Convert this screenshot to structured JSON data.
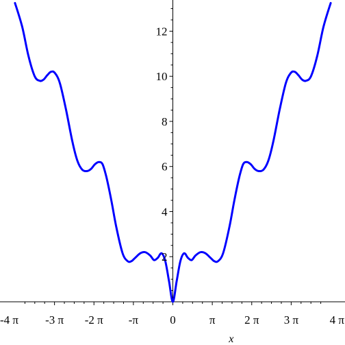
{
  "chart_data": {
    "type": "line",
    "title": "",
    "xlabel": "x",
    "ylabel": "",
    "xlim": [
      -12.566,
      12.566
    ],
    "ylim": [
      0,
      13.2
    ],
    "grid": false,
    "legend": "none",
    "line_color": "#0000ff",
    "x_ticks": [
      {
        "value": -12.566,
        "label": "-4 π"
      },
      {
        "value": -9.425,
        "label": "-3 π"
      },
      {
        "value": -6.283,
        "label": "-2 π"
      },
      {
        "value": -3.142,
        "label": "-π"
      },
      {
        "value": 0,
        "label": "0"
      },
      {
        "value": 3.142,
        "label": "π"
      },
      {
        "value": 6.283,
        "label": "2 π"
      },
      {
        "value": 9.425,
        "label": "3 π"
      },
      {
        "value": 12.566,
        "label": "4 π"
      }
    ],
    "y_ticks": [
      {
        "value": 2,
        "label": "2"
      },
      {
        "value": 4,
        "label": "4"
      },
      {
        "value": 6,
        "label": "6"
      },
      {
        "value": 8,
        "label": "8"
      },
      {
        "value": 10,
        "label": "10"
      },
      {
        "value": 12,
        "label": "12"
      }
    ],
    "series": [
      {
        "x": [
          -12.57,
          -12.0,
          -11.5,
          -11.0,
          -10.6,
          -10.3,
          -10.0,
          -9.7,
          -9.4,
          -9.0,
          -8.5,
          -8.0,
          -7.6,
          -7.2,
          -6.8,
          -6.5,
          -6.2,
          -5.9,
          -5.6,
          -5.3,
          -4.9,
          -4.5,
          -4.0,
          -3.6,
          -3.3,
          -3.0,
          -2.6,
          -2.2,
          -1.8,
          -1.5,
          -1.2,
          -0.9,
          -0.6,
          -0.3,
          0.0,
          0.3,
          0.6,
          0.9,
          1.2,
          1.5,
          1.8,
          2.2,
          2.6,
          3.0,
          3.3,
          3.6,
          4.0,
          4.5,
          4.9,
          5.3,
          5.6,
          5.9,
          6.2,
          6.5,
          6.8,
          7.2,
          7.6,
          8.0,
          8.5,
          9.0,
          9.4,
          9.7,
          10.0,
          10.3,
          10.6,
          11.0,
          11.5,
          12.0,
          12.57
        ],
        "y": [
          13.25,
          12.2,
          10.9,
          10.0,
          9.8,
          9.85,
          10.05,
          10.2,
          10.15,
          9.7,
          8.5,
          7.1,
          6.25,
          5.85,
          5.8,
          5.9,
          6.1,
          6.2,
          6.1,
          5.55,
          4.5,
          3.3,
          2.15,
          1.8,
          1.8,
          1.95,
          2.15,
          2.2,
          2.05,
          1.85,
          1.95,
          2.15,
          1.8,
          0.9,
          0.0,
          0.9,
          1.8,
          2.15,
          1.95,
          1.85,
          2.05,
          2.2,
          2.15,
          1.95,
          1.8,
          1.8,
          2.15,
          3.3,
          4.5,
          5.55,
          6.1,
          6.2,
          6.1,
          5.9,
          5.8,
          5.85,
          6.25,
          7.1,
          8.5,
          9.7,
          10.15,
          10.2,
          10.05,
          9.85,
          9.8,
          10.0,
          10.9,
          12.2,
          13.25
        ]
      }
    ]
  }
}
